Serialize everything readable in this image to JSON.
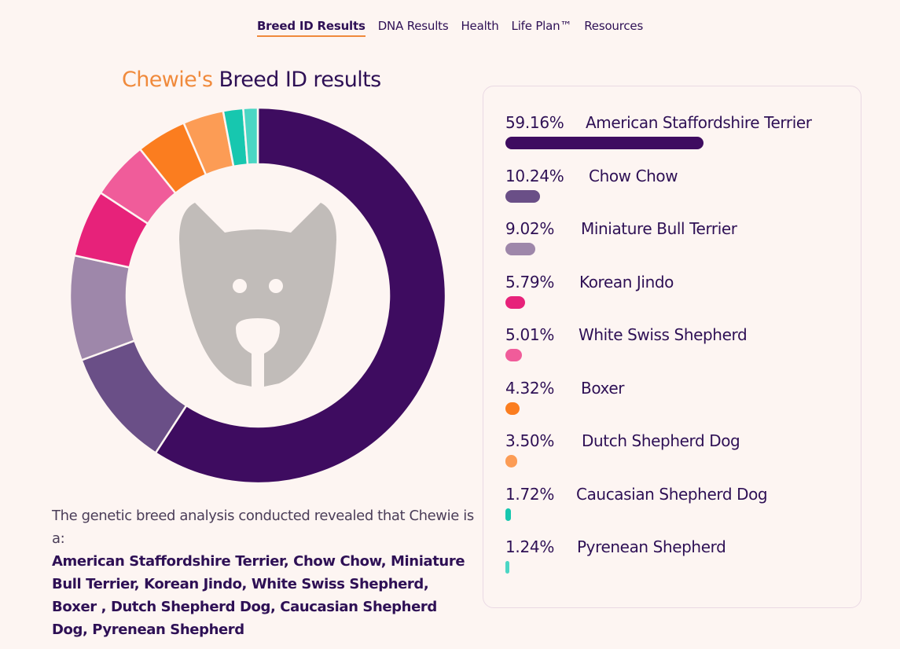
{
  "nav": {
    "items": [
      {
        "label": "Breed ID Results",
        "active": true
      },
      {
        "label": "DNA Results",
        "active": false
      },
      {
        "label": "Health",
        "active": false
      },
      {
        "label": "Life Plan™",
        "active": false
      },
      {
        "label": "Resources",
        "active": false
      }
    ]
  },
  "title": {
    "name": "Chewie's",
    "rest": "Breed ID results"
  },
  "summary": {
    "intro": "The genetic breed analysis conducted revealed that Chewie is a:",
    "breeds": "American Staffordshire Terrier, Chow Chow, Miniature Bull Terrier, Korean Jindo, White Swiss Shepherd, Boxer , Dutch Shepherd Dog, Caucasian Shepherd Dog, Pyrenean Shepherd"
  },
  "chart_data": {
    "type": "pie",
    "variant": "donut",
    "center_icon": "dog-face-icon",
    "series": [
      {
        "name": "American Staffordshire Terrier",
        "label": "59.16%",
        "value": 59.16,
        "color": "#3e0c60"
      },
      {
        "name": "Chow Chow",
        "label": "10.24%",
        "value": 10.24,
        "color": "#6a4f87"
      },
      {
        "name": "Miniature Bull Terrier",
        "label": "9.02%",
        "value": 9.02,
        "color": "#9e87aa"
      },
      {
        "name": "Korean Jindo",
        "label": "5.79%",
        "value": 5.79,
        "color": "#e7227a"
      },
      {
        "name": "White Swiss Shepherd",
        "label": "5.01%",
        "value": 5.01,
        "color": "#f05c9a"
      },
      {
        "name": "Boxer",
        "label": "4.32%",
        "value": 4.32,
        "color": "#fb7d1f"
      },
      {
        "name": "Dutch Shepherd Dog",
        "label": "3.50%",
        "value": 3.5,
        "color": "#fc9c55"
      },
      {
        "name": "Caucasian Shepherd Dog",
        "label": "1.72%",
        "value": 1.72,
        "color": "#17c7af"
      },
      {
        "name": "Pyrenean Shepherd",
        "label": "1.24%",
        "value": 1.24,
        "color": "#4bd6c4"
      }
    ]
  }
}
